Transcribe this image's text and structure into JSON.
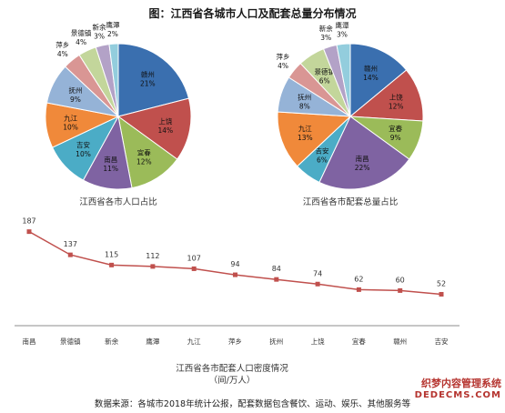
{
  "title": "图：江西省各城市人口及配套总量分布情况",
  "footer": "数据来源：各城市2018年统计公报，配套数据包含餐饮、运动、娱乐、其他服务等",
  "watermark": [
    "织梦内容管理系统",
    "DEDECMS.COM"
  ],
  "colors": {
    "赣州": "#3a6faf",
    "上饶": "#c0504d",
    "宜春": "#9bbb59",
    "南昌": "#7f63a2",
    "吉安": "#4bacc6",
    "九江": "#f0893a",
    "抚州": "#95b3d7",
    "萍乡": "#d99694",
    "景德镇": "#c3d69b",
    "新余": "#b3a2c7",
    "鹰潭": "#93cddd",
    "line": "#c0504d"
  },
  "chart_data": [
    {
      "type": "pie",
      "title": "江西省各市人口占比",
      "slices": [
        {
          "label": "赣州",
          "value": 21,
          "text": "21%"
        },
        {
          "label": "上饶",
          "value": 14,
          "text": "14%"
        },
        {
          "label": "宜春",
          "value": 12,
          "text": "12%"
        },
        {
          "label": "南昌",
          "value": 11,
          "text": "11%"
        },
        {
          "label": "吉安",
          "value": 10,
          "text": "10%"
        },
        {
          "label": "九江",
          "value": 10,
          "text": "10%"
        },
        {
          "label": "抚州",
          "value": 9,
          "text": "9%"
        },
        {
          "label": "萍乡",
          "value": 4,
          "text": "4%"
        },
        {
          "label": "景德镇",
          "value": 4,
          "text": "4%"
        },
        {
          "label": "新余",
          "value": 3,
          "text": "3%"
        },
        {
          "label": "鹰潭",
          "value": 2,
          "text": "2%"
        }
      ]
    },
    {
      "type": "pie",
      "title": "江西省各市配套总量占比",
      "slices": [
        {
          "label": "赣州",
          "value": 14,
          "text": "14%"
        },
        {
          "label": "上饶",
          "value": 12,
          "text": "12%"
        },
        {
          "label": "宜春",
          "value": 9,
          "text": "9%"
        },
        {
          "label": "南昌",
          "value": 22,
          "text": "22%"
        },
        {
          "label": "吉安",
          "value": 6,
          "text": "6%"
        },
        {
          "label": "九江",
          "value": 13,
          "text": "13%"
        },
        {
          "label": "抚州",
          "value": 8,
          "text": "8%"
        },
        {
          "label": "萍乡",
          "value": 4,
          "text": "4%"
        },
        {
          "label": "景德镇",
          "value": 6,
          "text": "6%"
        },
        {
          "label": "新余",
          "value": 3,
          "text": "3%"
        },
        {
          "label": "鹰潭",
          "value": 3,
          "text": "3%"
        }
      ]
    },
    {
      "type": "line",
      "title": "江西省各市配套人口密度情况",
      "subtitle": "（间/万人）",
      "categories": [
        "南昌",
        "景德镇",
        "新余",
        "鹰潭",
        "九江",
        "萍乡",
        "抚州",
        "上饶",
        "宜春",
        "赣州",
        "吉安"
      ],
      "values": [
        187,
        137,
        115,
        112,
        107,
        94,
        84,
        74,
        62,
        60,
        52
      ],
      "ylim": [
        0,
        200
      ]
    }
  ]
}
